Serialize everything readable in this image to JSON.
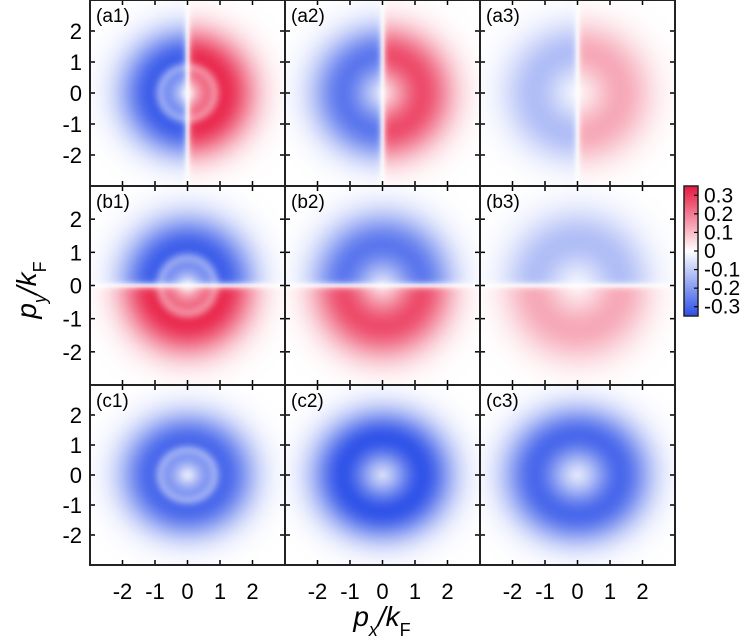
{
  "chart_data": {
    "type": "heatmap",
    "layout": "3x3 grid of 2D maps",
    "xlabel": "p_x / k_F",
    "ylabel": "p_y / k_F",
    "xlabel_parts": {
      "var": "p",
      "sub": "x",
      "den": "k",
      "den_sub": "F"
    },
    "ylabel_parts": {
      "var": "p",
      "sub": "y",
      "den": "k",
      "den_sub": "F"
    },
    "xlim": [
      -3,
      3
    ],
    "ylim": [
      -3,
      3
    ],
    "xticks": [
      -2,
      -1,
      0,
      1,
      2
    ],
    "xtick_labels": [
      "-2",
      "-1",
      "0",
      "1",
      "2"
    ],
    "yticks": [
      2,
      1,
      0,
      -1,
      -2
    ],
    "ytick_labels": [
      "2",
      "1",
      "0",
      "-1",
      "-2"
    ],
    "colorbar": {
      "min": -0.35,
      "max": 0.35,
      "ticks": [
        0.3,
        0.2,
        0.1,
        0,
        -0.1,
        -0.2,
        -0.3
      ],
      "tick_labels": [
        "0.3",
        "0.2",
        "0.1",
        "0",
        "-0.1",
        "-0.2",
        "-0.3"
      ],
      "colors": {
        "negative": "#2b4fe8",
        "zero": "#ffffff",
        "positive": "#e8173f"
      }
    },
    "panels": [
      {
        "label": "(a1)",
        "symmetry": "antisymmetric-x",
        "peak": 0.32,
        "peak_r": 1.1,
        "ring": true
      },
      {
        "label": "(a2)",
        "symmetry": "antisymmetric-x",
        "peak": 0.27,
        "peak_r": 1.2,
        "ring": false
      },
      {
        "label": "(a3)",
        "symmetry": "antisymmetric-x",
        "peak": 0.13,
        "peak_r": 1.3,
        "ring": false
      },
      {
        "label": "(b1)",
        "symmetry": "antisymmetric-y",
        "peak": 0.32,
        "peak_r": 1.1,
        "ring": true
      },
      {
        "label": "(b2)",
        "symmetry": "antisymmetric-y",
        "peak": 0.27,
        "peak_r": 1.2,
        "ring": false
      },
      {
        "label": "(b3)",
        "symmetry": "antisymmetric-y",
        "peak": 0.13,
        "peak_r": 1.3,
        "ring": false
      },
      {
        "label": "(c1)",
        "symmetry": "radial",
        "peak": -0.3,
        "peak_r": 1.1,
        "ring": true
      },
      {
        "label": "(c2)",
        "symmetry": "radial",
        "peak": -0.34,
        "peak_r": 1.2,
        "ring": false
      },
      {
        "label": "(c3)",
        "symmetry": "radial",
        "peak": -0.3,
        "peak_r": 1.3,
        "ring": false
      }
    ]
  }
}
